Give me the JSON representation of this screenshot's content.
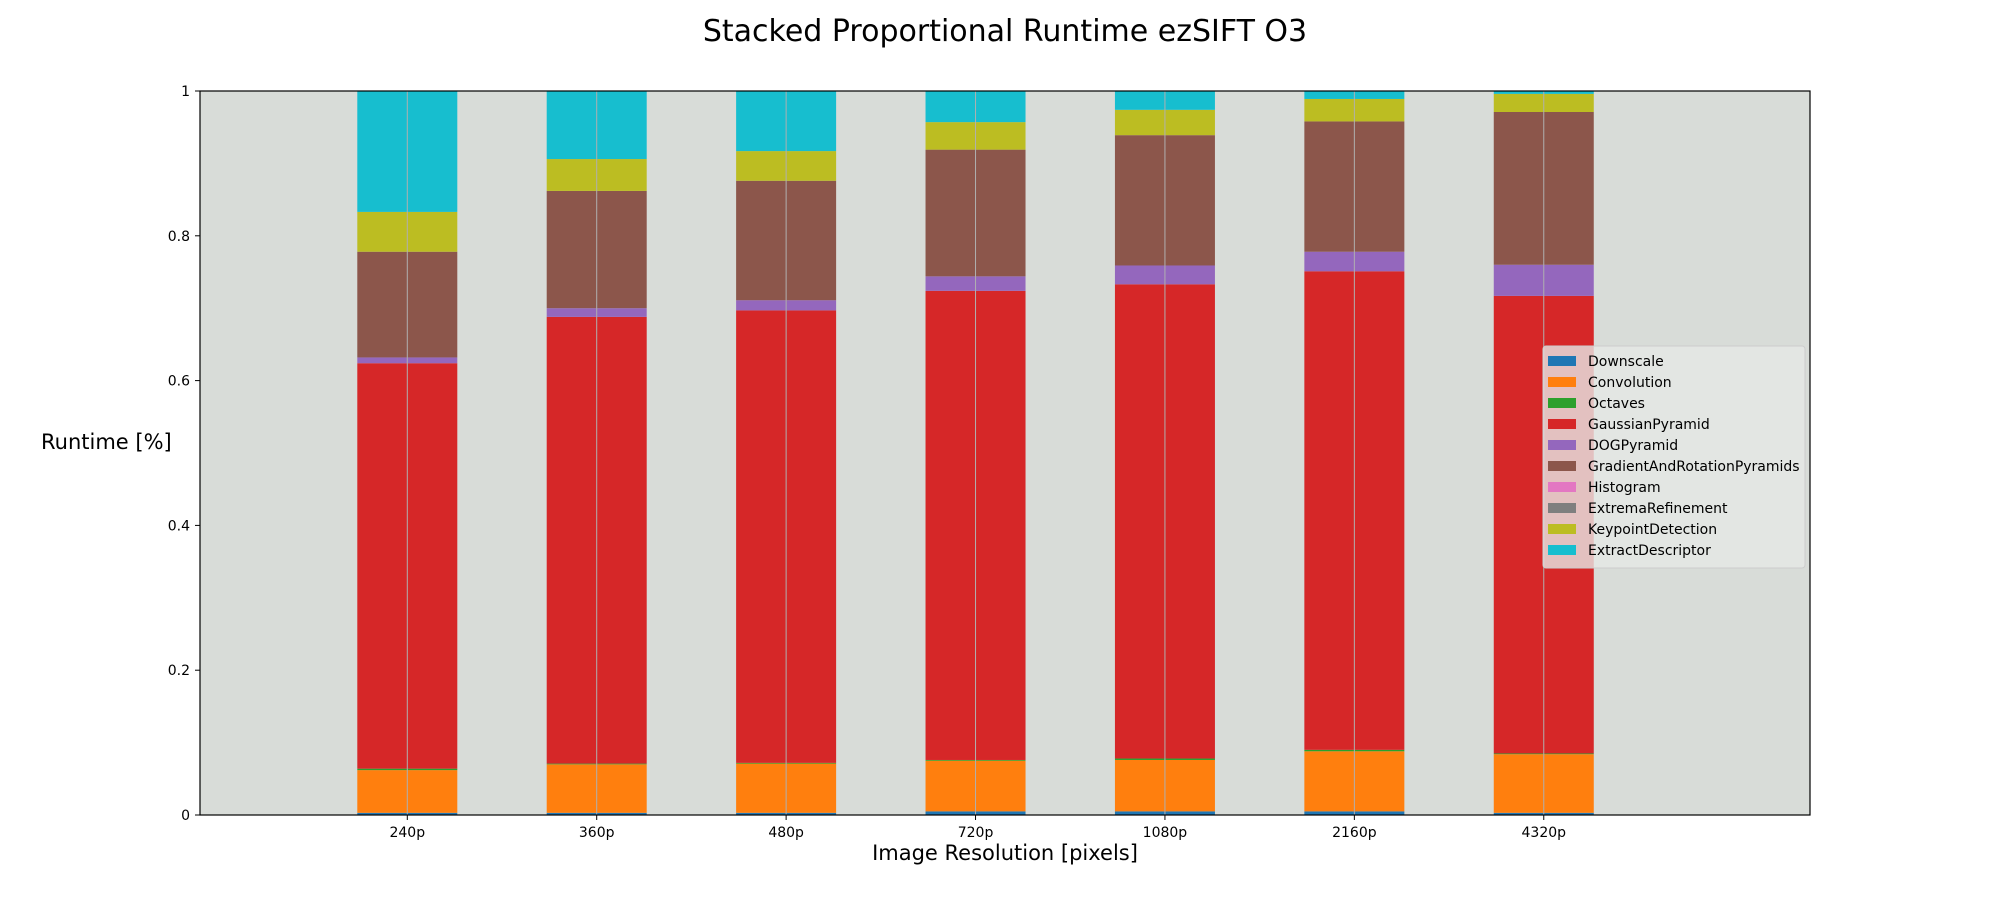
{
  "chart_data": {
    "type": "bar",
    "stacked": true,
    "title": "Stacked Proportional Runtime ezSIFT O3",
    "xlabel": "Image Resolution [pixels]",
    "ylabel": "Runtime [%]",
    "ylim": [
      0,
      1
    ],
    "yticks": [
      "0",
      "0.2",
      "0.4",
      "0.6",
      "0.8",
      "1"
    ],
    "categories": [
      "240p",
      "360p",
      "480p",
      "720p",
      "1080p",
      "2160p",
      "4320p"
    ],
    "series": [
      {
        "name": "Downscale",
        "color": "#1f77b4",
        "values": [
          0.003,
          0.003,
          0.003,
          0.005,
          0.005,
          0.005,
          0.003
        ]
      },
      {
        "name": "Convolution",
        "color": "#ff7f0e",
        "values": [
          0.059,
          0.067,
          0.068,
          0.07,
          0.071,
          0.083,
          0.081
        ]
      },
      {
        "name": "Octaves",
        "color": "#2ca02c",
        "values": [
          0.002,
          0.001,
          0.001,
          0.001,
          0.002,
          0.002,
          0.001
        ]
      },
      {
        "name": "GaussianPyramid",
        "color": "#d62728",
        "values": [
          0.56,
          0.617,
          0.625,
          0.648,
          0.655,
          0.661,
          0.632
        ]
      },
      {
        "name": "DOGPyramid",
        "color": "#9467bd",
        "values": [
          0.008,
          0.012,
          0.014,
          0.02,
          0.026,
          0.027,
          0.043
        ]
      },
      {
        "name": "GradientAndRotationPyramids",
        "color": "#8c564b",
        "values": [
          0.146,
          0.162,
          0.165,
          0.175,
          0.18,
          0.18,
          0.211
        ]
      },
      {
        "name": "Histogram",
        "color": "#e377c2",
        "values": [
          0,
          0,
          0,
          0,
          0,
          0,
          0
        ]
      },
      {
        "name": "ExtremaRefinement",
        "color": "#7f7f7f",
        "values": [
          0,
          0,
          0,
          0,
          0,
          0,
          0
        ]
      },
      {
        "name": "KeypointDetection",
        "color": "#bcbd22",
        "values": [
          0.055,
          0.044,
          0.041,
          0.038,
          0.035,
          0.031,
          0.025
        ]
      },
      {
        "name": "ExtractDescriptor",
        "color": "#17becf",
        "values": [
          0.167,
          0.094,
          0.083,
          0.043,
          0.026,
          0.011,
          0.004
        ]
      }
    ],
    "grid": "x",
    "legend_position": "center-right",
    "plot_background": "#d8dcd8"
  }
}
